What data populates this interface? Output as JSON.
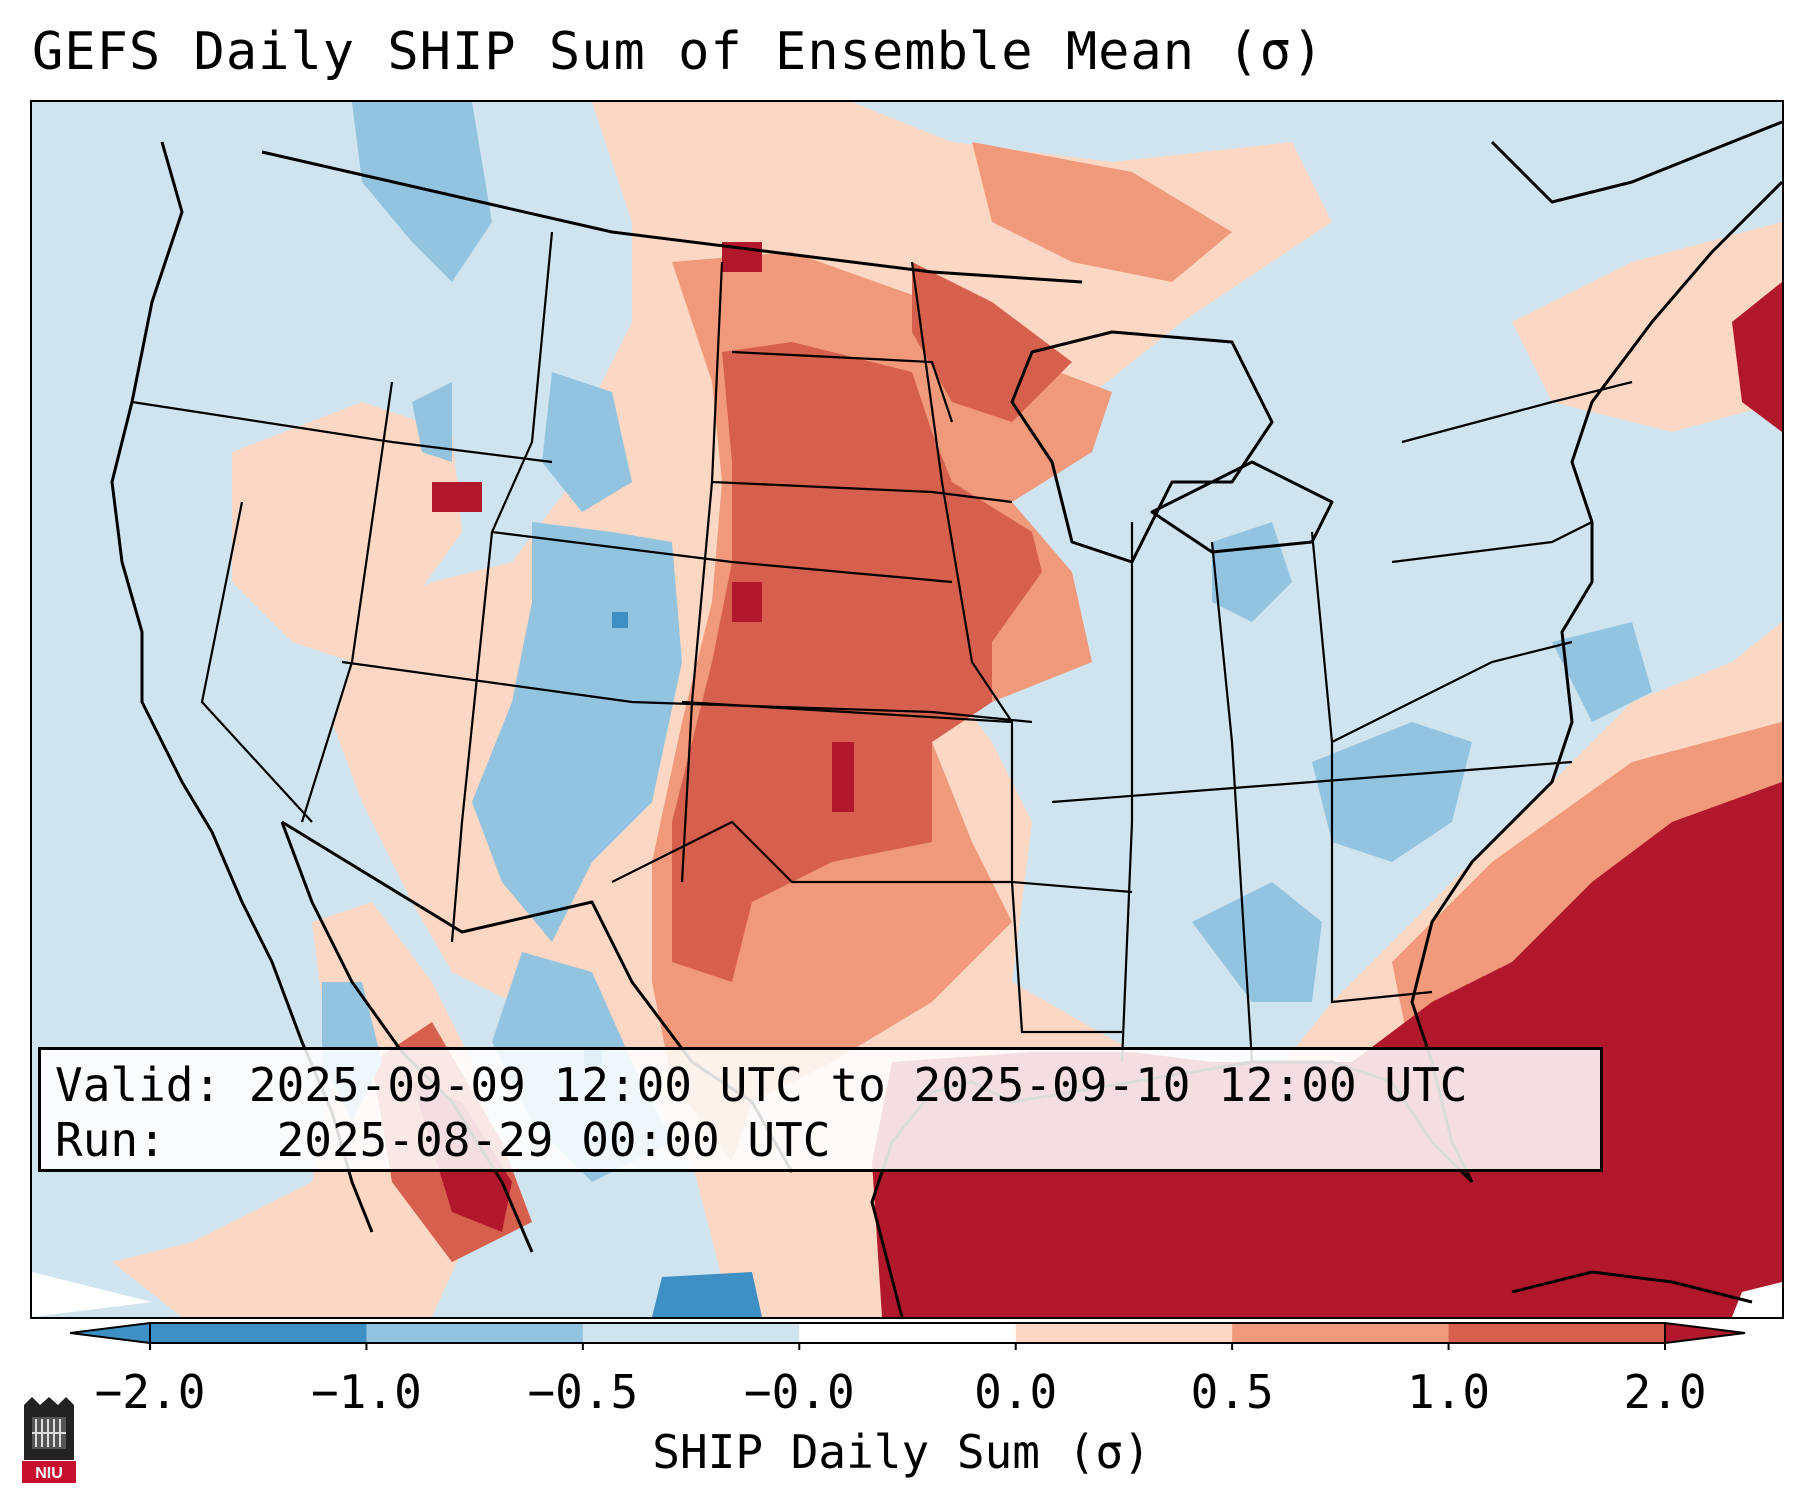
{
  "title": "GEFS Daily SHIP Sum of Ensemble Mean (σ)",
  "info": {
    "valid_label": "Valid:",
    "valid_value": "2025-09-09 12:00 UTC to 2025-09-10 12:00 UTC",
    "run_label": "Run:",
    "run_value": "2025-08-29 00:00 UTC"
  },
  "colorbar": {
    "title": "SHIP Daily Sum (σ)",
    "ticks": [
      "−2.0",
      "−1.0",
      "−0.5",
      "−0.0",
      "0.0",
      "0.5",
      "1.0",
      "2.0"
    ],
    "colors": [
      "#3d8fc4",
      "#92c3df",
      "#d0e4f0",
      "#ffffff",
      "#fbd7c4",
      "#f09a7b",
      "#d6604d",
      "#b2182b"
    ],
    "extend": "both"
  },
  "colors": {
    "neg_strong": "#3d8fc4",
    "neg_mid": "#92c3df",
    "neg_light": "#d0e4f0",
    "pos_light": "#fbd7c4",
    "pos_mid": "#f09a7b",
    "pos_strong": "#d6604d",
    "pos_max": "#b2182b"
  },
  "logo": {
    "icon": "niu-logo-icon",
    "text": "NIU"
  }
}
